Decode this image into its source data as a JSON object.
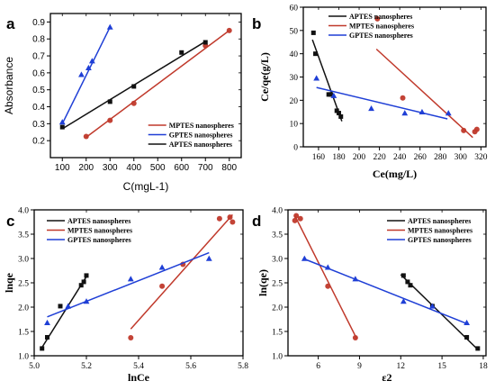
{
  "chart_data": [
    {
      "panel": "a",
      "type": "scatter",
      "xlabel": "C(mgL-1)",
      "ylabel": "Absorbance",
      "xlim": [
        50,
        850
      ],
      "ylim": [
        0.1,
        0.95
      ],
      "xticks": [
        100,
        200,
        300,
        400,
        500,
        600,
        700,
        800
      ],
      "yticks": [
        0.2,
        0.3,
        0.4,
        0.5,
        0.6,
        0.7,
        0.8,
        0.9
      ],
      "legend_position": "lower-right",
      "series": [
        {
          "name": "MPTES nanospheres",
          "color": "#c0392b",
          "marker": "circle",
          "x": [
            200,
            300,
            400,
            700,
            800
          ],
          "y": [
            0.225,
            0.32,
            0.42,
            0.76,
            0.85
          ],
          "fit": {
            "x": [
              200,
              800
            ],
            "y": [
              0.22,
              0.85
            ]
          }
        },
        {
          "name": "GPTES nanospheres",
          "color": "#1f3fd6",
          "marker": "triangle",
          "x": [
            100,
            180,
            210,
            225,
            300
          ],
          "y": [
            0.31,
            0.59,
            0.63,
            0.67,
            0.87
          ],
          "fit": {
            "x": [
              100,
              300
            ],
            "y": [
              0.3,
              0.87
            ]
          }
        },
        {
          "name": "APTES nanospheres",
          "color": "#111111",
          "marker": "square",
          "x": [
            100,
            300,
            400,
            600,
            700
          ],
          "y": [
            0.28,
            0.43,
            0.52,
            0.72,
            0.78
          ],
          "fit": {
            "x": [
              100,
              700
            ],
            "y": [
              0.27,
              0.785
            ]
          }
        }
      ]
    },
    {
      "panel": "b",
      "type": "scatter",
      "xlabel": "Ce(mg/L)",
      "ylabel": "Ce/qe(g/L)",
      "xlim": [
        145,
        325
      ],
      "ylim": [
        0,
        60
      ],
      "xticks": [
        160,
        180,
        200,
        220,
        240,
        260,
        280,
        300,
        320
      ],
      "yticks": [
        0,
        10,
        20,
        30,
        40,
        50,
        60
      ],
      "legend_position": "top-right",
      "series": [
        {
          "name": "APTES nanospheres",
          "color": "#111111",
          "marker": "square",
          "x": [
            155,
            157,
            170,
            172,
            178,
            180,
            182
          ],
          "y": [
            49,
            40,
            22.5,
            22.5,
            15.5,
            14.5,
            13
          ],
          "fit": {
            "x": [
              154,
              183
            ],
            "y": [
              46,
              11
            ]
          }
        },
        {
          "name": "MPTES nanospheres",
          "color": "#c0392b",
          "marker": "circle",
          "x": [
            218,
            243,
            303,
            314,
            316
          ],
          "y": [
            55,
            21,
            7,
            6.5,
            7.5
          ],
          "fit": {
            "x": [
              217,
              312
            ],
            "y": [
              42,
              4
            ]
          }
        },
        {
          "name": "GPTES nanospheres",
          "color": "#1f3fd6",
          "marker": "triangle",
          "x": [
            158,
            175,
            212,
            245,
            262,
            288
          ],
          "y": [
            29.5,
            22,
            16.5,
            14.5,
            15,
            14.5
          ],
          "fit": {
            "x": [
              158,
              287
            ],
            "y": [
              25.5,
              12
            ]
          }
        }
      ]
    },
    {
      "panel": "c",
      "type": "scatter",
      "xlabel": "lnCe",
      "ylabel": "lnqe",
      "xlim": [
        5.0,
        5.8
      ],
      "ylim": [
        1.0,
        4.0
      ],
      "xticks": [
        5.0,
        5.2,
        5.4,
        5.6,
        5.8
      ],
      "yticks": [
        1.0,
        1.5,
        2.0,
        2.5,
        3.0,
        3.5,
        4.0
      ],
      "legend_position": "top-left",
      "series": [
        {
          "name": "APTES nanospheres",
          "color": "#111111",
          "marker": "square",
          "x": [
            5.03,
            5.05,
            5.1,
            5.18,
            5.19,
            5.2
          ],
          "y": [
            1.15,
            1.38,
            2.02,
            2.45,
            2.52,
            2.65
          ],
          "fit": {
            "x": [
              5.025,
              5.205
            ],
            "y": [
              1.13,
              2.67
            ]
          }
        },
        {
          "name": "MPTES nanospheres",
          "color": "#c0392b",
          "marker": "circle",
          "x": [
            5.37,
            5.49,
            5.57,
            5.71,
            5.75,
            5.76
          ],
          "y": [
            1.37,
            2.43,
            2.88,
            3.82,
            3.85,
            3.75
          ],
          "fit": {
            "x": [
              5.37,
              5.76
            ],
            "y": [
              1.55,
              3.9
            ]
          }
        },
        {
          "name": "GPTES nanospheres",
          "color": "#1f3fd6",
          "marker": "triangle",
          "x": [
            5.05,
            5.13,
            5.2,
            5.37,
            5.49,
            5.67
          ],
          "y": [
            1.68,
            2.02,
            2.12,
            2.58,
            2.82,
            3.0
          ],
          "fit": {
            "x": [
              5.05,
              5.67
            ],
            "y": [
              1.8,
              3.12
            ]
          }
        }
      ]
    },
    {
      "panel": "d",
      "type": "scatter",
      "xlabel": "ε2",
      "ylabel": "ln(qe)",
      "xlim": [
        3.8,
        18.2
      ],
      "ylim": [
        1.0,
        4.0
      ],
      "xticks": [
        6,
        9,
        12,
        15,
        18
      ],
      "yticks": [
        1.0,
        1.5,
        2.0,
        2.5,
        3.0,
        3.5,
        4.0
      ],
      "legend_position": "top-right",
      "series": [
        {
          "name": "APTES nanospheres",
          "color": "#111111",
          "marker": "square",
          "x": [
            12.2,
            12.5,
            12.7,
            14.3,
            16.8,
            17.6
          ],
          "y": [
            2.65,
            2.52,
            2.45,
            2.02,
            1.38,
            1.15
          ],
          "fit": {
            "x": [
              12.0,
              17.6
            ],
            "y": [
              2.67,
              1.13
            ]
          }
        },
        {
          "name": "MPTES nanospheres",
          "color": "#c0392b",
          "marker": "circle",
          "x": [
            4.3,
            4.4,
            4.7,
            6.7,
            8.7
          ],
          "y": [
            3.78,
            3.88,
            3.82,
            2.43,
            1.37
          ],
          "fit": {
            "x": [
              4.3,
              8.8
            ],
            "y": [
              3.88,
              1.35
            ]
          }
        },
        {
          "name": "GPTES nanospheres",
          "color": "#1f3fd6",
          "marker": "triangle",
          "x": [
            5.0,
            6.7,
            8.7,
            12.2,
            14.3,
            16.8
          ],
          "y": [
            3.0,
            2.82,
            2.58,
            2.12,
            2.02,
            1.68
          ],
          "fit": {
            "x": [
              4.9,
              16.9
            ],
            "y": [
              3.0,
              1.65
            ]
          }
        }
      ]
    }
  ]
}
